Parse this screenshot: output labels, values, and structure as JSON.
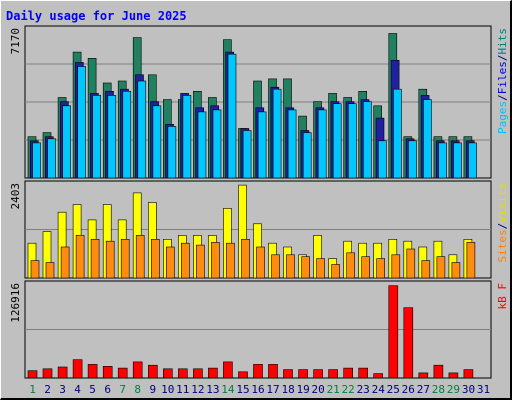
{
  "chart_data": {
    "type": "bar",
    "title": "Daily usage for June 2025",
    "days": [
      "1",
      "2",
      "3",
      "4",
      "5",
      "6",
      "7",
      "8",
      "9",
      "10",
      "11",
      "12",
      "13",
      "14",
      "15",
      "16",
      "17",
      "18",
      "19",
      "20",
      "21",
      "22",
      "23",
      "24",
      "25",
      "26",
      "27",
      "28",
      "29",
      "30",
      "31"
    ],
    "weekend_days": [
      "1",
      "7",
      "8",
      "14",
      "21",
      "22",
      "28",
      "29"
    ],
    "panels": [
      {
        "id": "hits-files-pages",
        "ymax_label": "7170",
        "ymax": 7170,
        "labels": [
          {
            "text": "Pages",
            "color": "#00c0ff"
          },
          {
            "text": "/",
            "color": "#000080"
          },
          {
            "text": "Files",
            "color": "#0000e0"
          },
          {
            "text": "/",
            "color": "#000080"
          },
          {
            "text": "Hits",
            "color": "#008080"
          }
        ],
        "series": [
          {
            "name": "Hits",
            "color": "#208060",
            "values": [
              2000,
              2200,
              3900,
              6100,
              5800,
              4600,
              4700,
              6800,
              5000,
              3800,
              3800,
              4200,
              3900,
              6700,
              2400,
              4700,
              4800,
              4800,
              3000,
              3700,
              4100,
              3900,
              4200,
              3500,
              7000,
              2000,
              4300,
              2000,
              2000,
              2000,
              0
            ]
          },
          {
            "name": "Files",
            "color": "#2020a0",
            "values": [
              1800,
              2000,
              3700,
              5600,
              4100,
              4200,
              4300,
              5000,
              3700,
              2600,
              4100,
              3400,
              3500,
              6100,
              2400,
              3400,
              4400,
              3400,
              2300,
              3400,
              3700,
              3700,
              3800,
              2900,
              5700,
              1900,
              4000,
              1800,
              1800,
              1800,
              0
            ]
          },
          {
            "name": "Pages",
            "color": "#00c8ff",
            "values": [
              1700,
              1900,
              3500,
              5400,
              4000,
              4000,
              4200,
              4700,
              3500,
              2500,
              4000,
              3200,
              3300,
              6000,
              2300,
              3200,
              4300,
              3300,
              2200,
              3300,
              3600,
              3600,
              3700,
              1800,
              4300,
              1800,
              3800,
              1700,
              1700,
              1700,
              0
            ]
          }
        ]
      },
      {
        "id": "visits-sites",
        "ymax_label": "2403",
        "ymax": 2403,
        "labels": [
          {
            "text": "Sites",
            "color": "#ff8000"
          },
          {
            "text": "/",
            "color": "#000080"
          },
          {
            "text": "Visits",
            "color": "#e0e000"
          }
        ],
        "series": [
          {
            "name": "Visits",
            "color": "#ffff00",
            "values": [
              900,
              1200,
              1700,
              1900,
              1500,
              1900,
              1500,
              2200,
              1950,
              1000,
              1100,
              1100,
              1100,
              1800,
              2400,
              1400,
              900,
              800,
              600,
              1100,
              500,
              950,
              900,
              900,
              1000,
              950,
              800,
              950,
              600,
              1000,
              0
            ]
          },
          {
            "name": "Sites",
            "color": "#ff8c10",
            "values": [
              450,
              400,
              800,
              1100,
              1000,
              950,
              1000,
              1100,
              1000,
              800,
              900,
              850,
              920,
              900,
              1000,
              800,
              600,
              600,
              550,
              500,
              350,
              650,
              550,
              500,
              600,
              750,
              450,
              550,
              400,
              920,
              0
            ]
          }
        ]
      },
      {
        "id": "kbf",
        "ymax_label": "126916",
        "ymax": 126916,
        "labels": [
          {
            "text": "kB F",
            "color": "#ff0000"
          }
        ],
        "series": [
          {
            "name": "kB F",
            "color": "#ff0000",
            "values": [
              10000,
              12500,
              15000,
              25000,
              18500,
              16000,
              13500,
              22000,
              17500,
              12500,
              12500,
              12500,
              13500,
              22000,
              8500,
              18500,
              18500,
              11500,
              11500,
              11500,
              11500,
              13500,
              13500,
              6000,
              126000,
              96000,
              7000,
              17500,
              7000,
              11500,
              0
            ]
          }
        ]
      }
    ]
  }
}
